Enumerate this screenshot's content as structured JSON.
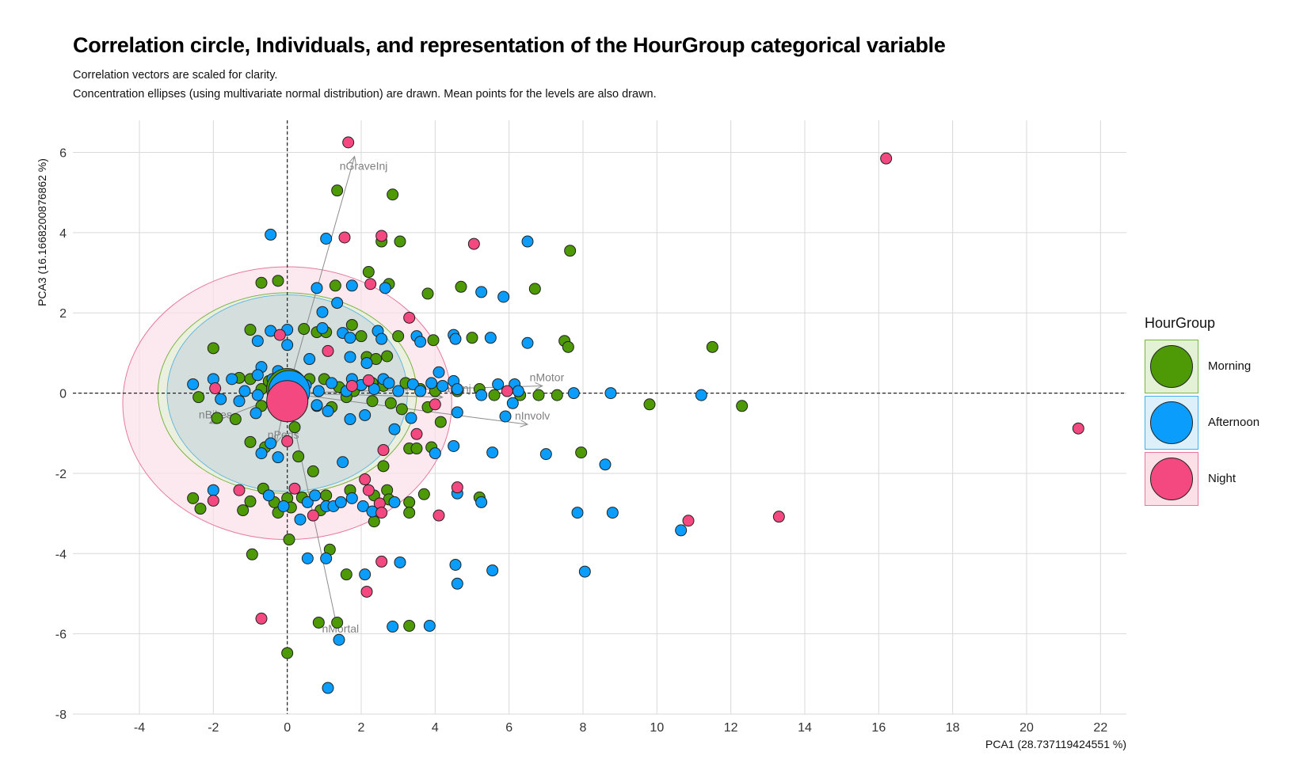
{
  "title": "Correlation circle, Individuals, and representation of the HourGroup categorical variable",
  "subtitle1": "Correlation vectors are scaled for clarity.",
  "subtitle2": "Concentration ellipses (using multivariate normal distribution) are drawn. Mean points for the levels are also drawn.",
  "legend": {
    "title": "HourGroup",
    "items": [
      {
        "label": "Morning",
        "color": "#4d9a06",
        "fill": "#e3f2d5",
        "border": "#7bb544"
      },
      {
        "label": "Afternoon",
        "color": "#0b9dfb",
        "fill": "#dcf0fb",
        "border": "#3fb0e8"
      },
      {
        "label": "Night",
        "color": "#f44880",
        "fill": "#fbe0e8",
        "border": "#e7799d"
      }
    ]
  },
  "chart_data": {
    "type": "scatter",
    "title": "Correlation circle, Individuals, and representation of the HourGroup categorical variable",
    "xlabel": "PCA1 (28.737119424551 %)",
    "ylabel": "PCA3 (16.1668200876862 %)",
    "xlim": [
      -5.8,
      22.7
    ],
    "ylim": [
      -8.0,
      6.8
    ],
    "xticks": [
      -4,
      -2,
      0,
      2,
      4,
      6,
      8,
      10,
      12,
      14,
      16,
      18,
      20,
      22
    ],
    "yticks": [
      -8,
      -6,
      -4,
      -2,
      0,
      2,
      4,
      6
    ],
    "grid": true,
    "legend_position": "right",
    "vectors": [
      {
        "name": "nGraveInj",
        "x": 1.82,
        "y": 5.9
      },
      {
        "name": "nMotor",
        "x": 6.9,
        "y": 0.18
      },
      {
        "name": "nInvolv",
        "x": 6.5,
        "y": -0.78
      },
      {
        "name": "nCarsInj",
        "x": 4.2,
        "y": -0.1
      },
      {
        "name": "nBikes",
        "x": -2.1,
        "y": -0.75
      },
      {
        "name": "nPeds",
        "x": -0.3,
        "y": -1.25
      },
      {
        "name": "nMortal",
        "x": 1.35,
        "y": -5.85
      }
    ],
    "ellipses": [
      {
        "group": "Night",
        "cx": 0.0,
        "cy": -0.25,
        "rx": 4.45,
        "ry": 3.4
      },
      {
        "group": "Morning",
        "cx": 0.0,
        "cy": 0.0,
        "rx": 3.5,
        "ry": 2.5
      },
      {
        "group": "Afternoon",
        "cx": 0.0,
        "cy": 0.0,
        "rx": 3.25,
        "ry": 2.45
      }
    ],
    "means": [
      {
        "group": "Morning",
        "x": 0.0,
        "y": 0.1
      },
      {
        "group": "Afternoon",
        "x": 0.05,
        "y": 0.05
      },
      {
        "group": "Night",
        "x": 0.0,
        "y": -0.2
      }
    ],
    "series": [
      {
        "name": "Morning",
        "points": [
          [
            1.35,
            5.05
          ],
          [
            2.85,
            4.95
          ],
          [
            2.55,
            3.78
          ],
          [
            3.05,
            3.78
          ],
          [
            7.65,
            3.55
          ],
          [
            2.2,
            3.02
          ],
          [
            2.75,
            2.72
          ],
          [
            6.7,
            2.6
          ],
          [
            4.7,
            2.65
          ],
          [
            -0.7,
            2.75
          ],
          [
            -0.25,
            2.8
          ],
          [
            1.3,
            2.68
          ],
          [
            3.8,
            2.48
          ],
          [
            -2.0,
            1.12
          ],
          [
            -1.0,
            1.58
          ],
          [
            0.45,
            1.6
          ],
          [
            0.8,
            1.52
          ],
          [
            1.05,
            1.52
          ],
          [
            2.0,
            1.42
          ],
          [
            1.75,
            1.7
          ],
          [
            3.0,
            1.42
          ],
          [
            3.95,
            1.32
          ],
          [
            5.0,
            1.38
          ],
          [
            7.5,
            1.3
          ],
          [
            7.6,
            1.15
          ],
          [
            11.5,
            1.15
          ],
          [
            2.15,
            0.9
          ],
          [
            2.4,
            0.85
          ],
          [
            2.7,
            0.92
          ],
          [
            -1.3,
            0.38
          ],
          [
            -1.0,
            0.35
          ],
          [
            -0.7,
            0.1
          ],
          [
            -0.5,
            0.3
          ],
          [
            -0.3,
            0.05
          ],
          [
            -0.1,
            0.25
          ],
          [
            0.6,
            0.35
          ],
          [
            1.0,
            0.35
          ],
          [
            1.4,
            0.15
          ],
          [
            1.8,
            0.05
          ],
          [
            2.0,
            0.2
          ],
          [
            2.3,
            0.25
          ],
          [
            2.6,
            0.18
          ],
          [
            3.2,
            0.25
          ],
          [
            3.6,
            0.1
          ],
          [
            4.0,
            0.05
          ],
          [
            4.6,
            0.05
          ],
          [
            5.2,
            0.1
          ],
          [
            5.6,
            -0.05
          ],
          [
            6.3,
            -0.05
          ],
          [
            6.8,
            -0.05
          ],
          [
            7.3,
            -0.05
          ],
          [
            9.8,
            -0.28
          ],
          [
            12.3,
            -0.32
          ],
          [
            -2.4,
            -0.1
          ],
          [
            -1.9,
            -0.62
          ],
          [
            -1.4,
            -0.65
          ],
          [
            -0.7,
            -0.32
          ],
          [
            0.2,
            -0.85
          ],
          [
            0.8,
            -0.32
          ],
          [
            1.2,
            -0.35
          ],
          [
            1.6,
            -0.1
          ],
          [
            2.3,
            -0.2
          ],
          [
            2.8,
            -0.25
          ],
          [
            3.1,
            -0.4
          ],
          [
            3.8,
            -0.35
          ],
          [
            4.15,
            -0.72
          ],
          [
            -1.0,
            -1.22
          ],
          [
            -0.6,
            -1.35
          ],
          [
            0.3,
            -1.58
          ],
          [
            0.7,
            -1.95
          ],
          [
            2.6,
            -1.82
          ],
          [
            3.3,
            -1.38
          ],
          [
            3.5,
            -1.38
          ],
          [
            3.9,
            -1.35
          ],
          [
            7.95,
            -1.48
          ],
          [
            -2.55,
            -2.62
          ],
          [
            -2.35,
            -2.88
          ],
          [
            -1.2,
            -2.92
          ],
          [
            -1.0,
            -2.7
          ],
          [
            -0.65,
            -2.38
          ],
          [
            -0.35,
            -2.72
          ],
          [
            -0.25,
            -2.98
          ],
          [
            0.0,
            -2.62
          ],
          [
            0.1,
            -2.85
          ],
          [
            0.4,
            -2.6
          ],
          [
            0.9,
            -2.92
          ],
          [
            1.05,
            -2.55
          ],
          [
            1.7,
            -2.42
          ],
          [
            2.35,
            -2.55
          ],
          [
            2.7,
            -2.42
          ],
          [
            2.75,
            -2.65
          ],
          [
            3.3,
            -2.72
          ],
          [
            3.7,
            -2.52
          ],
          [
            3.3,
            -2.98
          ],
          [
            5.2,
            -2.6
          ],
          [
            2.35,
            -3.2
          ],
          [
            0.05,
            -3.65
          ],
          [
            1.15,
            -3.9
          ],
          [
            -0.95,
            -4.02
          ],
          [
            1.6,
            -4.52
          ],
          [
            0.85,
            -5.72
          ],
          [
            1.35,
            -5.72
          ],
          [
            3.3,
            -5.8
          ],
          [
            0.0,
            -6.48
          ]
        ]
      },
      {
        "name": "Afternoon",
        "points": [
          [
            -0.45,
            3.95
          ],
          [
            1.05,
            3.85
          ],
          [
            6.5,
            3.78
          ],
          [
            2.65,
            2.62
          ],
          [
            5.25,
            2.52
          ],
          [
            5.85,
            2.4
          ],
          [
            0.8,
            2.62
          ],
          [
            1.75,
            2.68
          ],
          [
            1.35,
            2.25
          ],
          [
            0.95,
            2.02
          ],
          [
            -0.8,
            1.3
          ],
          [
            -0.45,
            1.55
          ],
          [
            0.0,
            1.58
          ],
          [
            0.95,
            1.62
          ],
          [
            1.5,
            1.5
          ],
          [
            1.7,
            1.38
          ],
          [
            2.45,
            1.55
          ],
          [
            2.55,
            1.35
          ],
          [
            3.5,
            1.42
          ],
          [
            3.6,
            1.28
          ],
          [
            4.5,
            1.45
          ],
          [
            4.55,
            1.35
          ],
          [
            5.5,
            1.38
          ],
          [
            6.5,
            1.25
          ],
          [
            0.0,
            1.2
          ],
          [
            0.6,
            0.85
          ],
          [
            1.7,
            0.9
          ],
          [
            2.15,
            0.75
          ],
          [
            -0.7,
            0.65
          ],
          [
            -0.25,
            0.55
          ],
          [
            -2.55,
            0.22
          ],
          [
            -2.0,
            0.35
          ],
          [
            -1.5,
            0.35
          ],
          [
            -1.15,
            0.05
          ],
          [
            -0.8,
            0.45
          ],
          [
            -0.4,
            0.35
          ],
          [
            -0.2,
            0.1
          ],
          [
            0.5,
            0.2
          ],
          [
            0.85,
            0.05
          ],
          [
            1.2,
            0.25
          ],
          [
            1.6,
            0.05
          ],
          [
            1.75,
            0.35
          ],
          [
            2.0,
            0.2
          ],
          [
            2.35,
            0.1
          ],
          [
            2.6,
            0.35
          ],
          [
            2.75,
            0.25
          ],
          [
            3.0,
            0.05
          ],
          [
            3.4,
            0.22
          ],
          [
            3.6,
            0.05
          ],
          [
            3.9,
            0.25
          ],
          [
            4.1,
            0.52
          ],
          [
            4.2,
            0.18
          ],
          [
            4.5,
            0.3
          ],
          [
            4.6,
            0.1
          ],
          [
            5.25,
            -0.05
          ],
          [
            5.7,
            0.22
          ],
          [
            6.15,
            0.22
          ],
          [
            6.25,
            0.05
          ],
          [
            7.75,
            0.0
          ],
          [
            8.75,
            0.0
          ],
          [
            11.2,
            -0.05
          ],
          [
            -1.8,
            -0.15
          ],
          [
            -1.3,
            -0.2
          ],
          [
            -0.8,
            -0.05
          ],
          [
            -0.85,
            -0.5
          ],
          [
            -0.3,
            -0.35
          ],
          [
            0.1,
            -0.25
          ],
          [
            0.8,
            -0.3
          ],
          [
            1.1,
            -0.45
          ],
          [
            1.7,
            -0.65
          ],
          [
            2.1,
            -0.55
          ],
          [
            2.9,
            -0.9
          ],
          [
            3.35,
            -0.62
          ],
          [
            4.6,
            -0.48
          ],
          [
            6.1,
            -0.25
          ],
          [
            5.9,
            -0.58
          ],
          [
            -0.7,
            -1.5
          ],
          [
            -0.25,
            -1.6
          ],
          [
            -0.45,
            -1.25
          ],
          [
            1.5,
            -1.72
          ],
          [
            4.0,
            -1.5
          ],
          [
            4.5,
            -1.32
          ],
          [
            5.55,
            -1.48
          ],
          [
            7.0,
            -1.52
          ],
          [
            8.6,
            -1.78
          ],
          [
            -2.0,
            -2.42
          ],
          [
            -0.5,
            -2.55
          ],
          [
            -0.1,
            -2.82
          ],
          [
            0.55,
            -2.72
          ],
          [
            0.75,
            -2.55
          ],
          [
            1.05,
            -2.82
          ],
          [
            1.25,
            -2.82
          ],
          [
            1.45,
            -2.72
          ],
          [
            1.75,
            -2.62
          ],
          [
            2.05,
            -2.82
          ],
          [
            2.3,
            -2.95
          ],
          [
            2.9,
            -2.72
          ],
          [
            4.6,
            -2.5
          ],
          [
            5.25,
            -2.72
          ],
          [
            7.85,
            -2.98
          ],
          [
            8.8,
            -2.98
          ],
          [
            0.35,
            -3.15
          ],
          [
            0.55,
            -4.12
          ],
          [
            1.05,
            -4.12
          ],
          [
            2.1,
            -4.52
          ],
          [
            3.05,
            -4.22
          ],
          [
            4.55,
            -4.28
          ],
          [
            4.6,
            -4.75
          ],
          [
            5.55,
            -4.42
          ],
          [
            8.05,
            -4.45
          ],
          [
            10.65,
            -3.42
          ],
          [
            2.85,
            -5.82
          ],
          [
            3.85,
            -5.8
          ],
          [
            1.4,
            -6.15
          ],
          [
            1.1,
            -7.35
          ]
        ]
      },
      {
        "name": "Night",
        "points": [
          [
            1.65,
            6.25
          ],
          [
            16.2,
            5.85
          ],
          [
            1.55,
            3.88
          ],
          [
            2.55,
            3.92
          ],
          [
            5.05,
            3.72
          ],
          [
            2.25,
            2.72
          ],
          [
            3.3,
            1.88
          ],
          [
            -0.2,
            1.45
          ],
          [
            1.1,
            1.05
          ],
          [
            -1.95,
            0.12
          ],
          [
            1.75,
            0.18
          ],
          [
            2.2,
            0.32
          ],
          [
            5.95,
            0.05
          ],
          [
            4.0,
            -0.28
          ],
          [
            21.4,
            -0.88
          ],
          [
            2.6,
            -1.42
          ],
          [
            3.5,
            -1.02
          ],
          [
            0.0,
            -1.2
          ],
          [
            -2.0,
            -2.68
          ],
          [
            -1.3,
            -2.42
          ],
          [
            0.2,
            -2.38
          ],
          [
            2.1,
            -2.15
          ],
          [
            2.2,
            -2.42
          ],
          [
            2.5,
            -2.75
          ],
          [
            2.55,
            -2.98
          ],
          [
            4.6,
            -2.35
          ],
          [
            0.7,
            -3.05
          ],
          [
            4.1,
            -3.05
          ],
          [
            10.85,
            -3.18
          ],
          [
            13.3,
            -3.08
          ],
          [
            2.55,
            -4.2
          ],
          [
            2.15,
            -4.95
          ],
          [
            -0.7,
            -5.62
          ]
        ]
      }
    ]
  }
}
